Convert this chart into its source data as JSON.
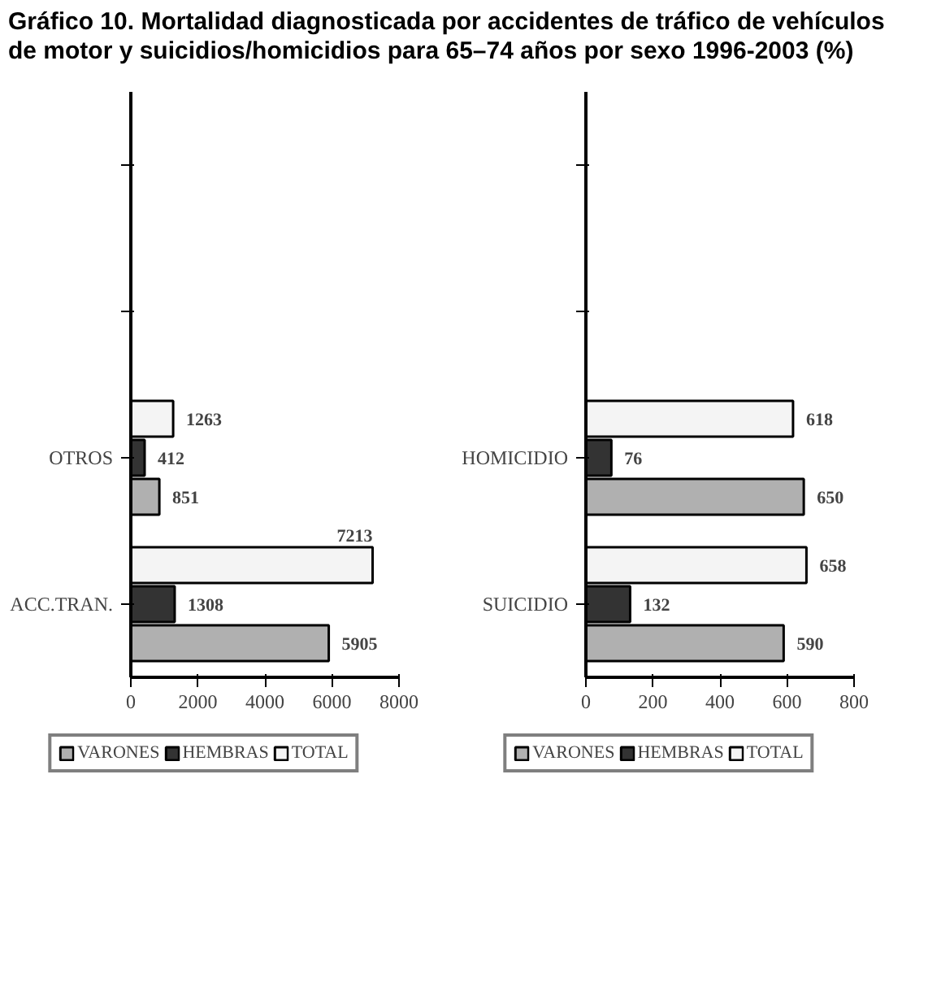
{
  "chart_data": [
    {
      "type": "bar",
      "orientation": "horizontal",
      "title": "Gráfico 10. Mortalidad diagnosticada por accidentes de tráfico de vehículos de motor y suicidios/homicidios para 65–74 años por sexo 1996-2003 (%)",
      "categories": [
        null,
        null,
        "OTROS",
        "ACC.TRAN."
      ],
      "xlim": [
        0,
        8000
      ],
      "xticks": [
        0,
        2000,
        4000,
        6000,
        8000
      ],
      "data_labels": true,
      "legend": "bottom",
      "grid": false,
      "series": [
        {
          "name": "VARONES",
          "color": "#b0b0b0",
          "values": [
            null,
            null,
            851,
            5905
          ]
        },
        {
          "name": "HEMBRAS",
          "color": "#333333",
          "values": [
            null,
            null,
            412,
            1308
          ]
        },
        {
          "name": "TOTAL",
          "color": "#f4f4f4",
          "values": [
            null,
            null,
            1263,
            7213
          ]
        }
      ]
    },
    {
      "type": "bar",
      "orientation": "horizontal",
      "categories": [
        null,
        null,
        "HOMICIDIO",
        "SUICIDIO"
      ],
      "xlim": [
        0,
        800
      ],
      "xticks": [
        0,
        200,
        400,
        600,
        800
      ],
      "data_labels": true,
      "legend": "bottom",
      "grid": false,
      "series": [
        {
          "name": "VARONES",
          "color": "#b0b0b0",
          "values": [
            null,
            null,
            650,
            590
          ]
        },
        {
          "name": "HEMBRAS",
          "color": "#333333",
          "values": [
            null,
            null,
            76,
            132
          ]
        },
        {
          "name": "TOTAL",
          "color": "#f4f4f4",
          "values": [
            null,
            null,
            618,
            658
          ]
        }
      ]
    }
  ]
}
